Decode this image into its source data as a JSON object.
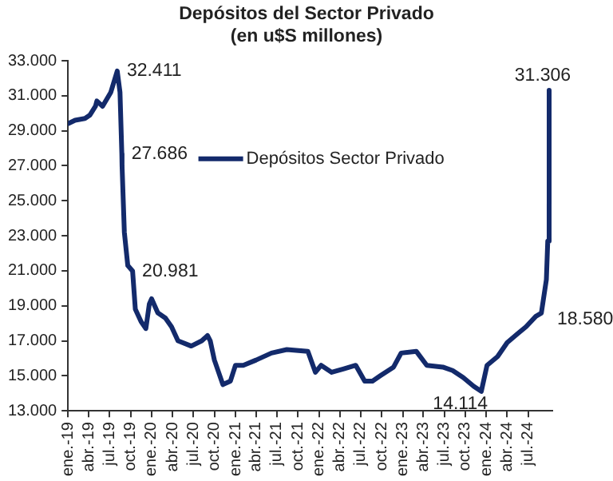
{
  "chart_data": {
    "type": "line",
    "title": "Depósitos del Sector Privado",
    "subtitle": "(en u$S millones)",
    "x": [
      "2019-01-01",
      "2019-02-01",
      "2019-03-16",
      "2019-04-07",
      "2019-05-01",
      "2019-05-07",
      "2019-06-01",
      "2019-07-07",
      "2019-08-04",
      "2019-08-16",
      "2019-08-24",
      "2019-08-25",
      "2019-09-04",
      "2019-09-19",
      "2019-10-10",
      "2019-10-22",
      "2019-11-16",
      "2019-12-07",
      "2019-12-22",
      "2020-01-01",
      "2020-01-28",
      "2020-03-01",
      "2020-03-28",
      "2020-04-25",
      "2020-06-22",
      "2020-08-07",
      "2020-09-01",
      "2020-09-13",
      "2020-10-01",
      "2020-11-07",
      "2020-12-10",
      "2021-01-01",
      "2021-02-04",
      "2021-04-01",
      "2021-06-07",
      "2021-08-13",
      "2021-11-13",
      "2021-12-16",
      "2022-01-10",
      "2022-02-25",
      "2022-04-19",
      "2022-06-10",
      "2022-07-19",
      "2022-08-22",
      "2022-09-25",
      "2022-11-22",
      "2022-12-25",
      "2023-03-01",
      "2023-04-16",
      "2023-06-25",
      "2023-08-07",
      "2023-09-22",
      "2023-11-07",
      "2023-12-10",
      "2024-01-04",
      "2024-02-19",
      "2024-04-01",
      "2024-05-16",
      "2024-06-22",
      "2024-08-04",
      "2024-08-28",
      "2024-09-19",
      "2024-09-25",
      "2024-10-01"
    ],
    "series": [
      {
        "name": "Depósitos Sector Privado",
        "color": "#132a6b",
        "values": [
          29400,
          29600,
          29700,
          29900,
          30400,
          30700,
          30400,
          31200,
          32411,
          31200,
          27686,
          27000,
          23200,
          21300,
          20981,
          18800,
          18100,
          17700,
          19100,
          19400,
          18600,
          18300,
          17800,
          17000,
          16700,
          17000,
          17300,
          17000,
          15900,
          14500,
          14700,
          15600,
          15600,
          15900,
          16300,
          16500,
          16400,
          15200,
          15600,
          15200,
          15400,
          15600,
          14700,
          14700,
          15000,
          15500,
          16300,
          16400,
          15600,
          15500,
          15300,
          14900,
          14400,
          14114,
          15600,
          16100,
          16900,
          17400,
          17800,
          18400,
          18580,
          20500,
          22700,
          31306
        ]
      }
    ],
    "ylim": [
      13000,
      33000
    ],
    "yticks": [
      {
        "value": 13000,
        "label": "13.000"
      },
      {
        "value": 15000,
        "label": "15.000"
      },
      {
        "value": 17000,
        "label": "17.000"
      },
      {
        "value": 19000,
        "label": "19.000"
      },
      {
        "value": 21000,
        "label": "21.000"
      },
      {
        "value": 23000,
        "label": "23.000"
      },
      {
        "value": 25000,
        "label": "25.000"
      },
      {
        "value": 27000,
        "label": "27.000"
      },
      {
        "value": 29000,
        "label": "29.000"
      },
      {
        "value": 31000,
        "label": "31.000"
      },
      {
        "value": 33000,
        "label": "33.000"
      }
    ],
    "xlim": [
      "2019-01-01",
      "2024-10-15"
    ],
    "xticks": [
      {
        "value": "2019-01-01",
        "label": "ene.-19"
      },
      {
        "value": "2019-04-01",
        "label": "abr.-19"
      },
      {
        "value": "2019-07-01",
        "label": "jul.-19"
      },
      {
        "value": "2019-10-01",
        "label": "oct.-19"
      },
      {
        "value": "2020-01-01",
        "label": "ene.-20"
      },
      {
        "value": "2020-04-01",
        "label": "abr.-20"
      },
      {
        "value": "2020-07-01",
        "label": "jul.-20"
      },
      {
        "value": "2020-10-01",
        "label": "oct.-20"
      },
      {
        "value": "2021-01-01",
        "label": "ene.-21"
      },
      {
        "value": "2021-04-01",
        "label": "abr.-21"
      },
      {
        "value": "2021-07-01",
        "label": "jul.-21"
      },
      {
        "value": "2021-10-01",
        "label": "oct.-21"
      },
      {
        "value": "2022-01-01",
        "label": "ene.-22"
      },
      {
        "value": "2022-04-01",
        "label": "abr.-22"
      },
      {
        "value": "2022-07-01",
        "label": "jul.-22"
      },
      {
        "value": "2022-10-01",
        "label": "oct.-22"
      },
      {
        "value": "2023-01-01",
        "label": "ene.-23"
      },
      {
        "value": "2023-04-01",
        "label": "abr.-23"
      },
      {
        "value": "2023-07-01",
        "label": "jul.-23"
      },
      {
        "value": "2023-10-01",
        "label": "oct.-23"
      },
      {
        "value": "2024-01-01",
        "label": "ene.-24"
      },
      {
        "value": "2024-04-01",
        "label": "abr.-24"
      },
      {
        "value": "2024-07-01",
        "label": "jul.-24"
      }
    ],
    "annotations": [
      {
        "text": "32.411",
        "x": "2019-08-04",
        "y": 32411
      },
      {
        "text": "27.686",
        "x": "2019-08-24",
        "y": 27686
      },
      {
        "text": "20.981",
        "x": "2019-10-10",
        "y": 20981
      },
      {
        "text": "14.114",
        "x": "2023-12-10",
        "y": 14114
      },
      {
        "text": "18.580",
        "x": "2024-08-28",
        "y": 18580
      },
      {
        "text": "31.306",
        "x": "2024-10-01",
        "y": 31306
      }
    ],
    "legend": "top",
    "grid": false,
    "marker": "none",
    "line_style": "solid"
  }
}
